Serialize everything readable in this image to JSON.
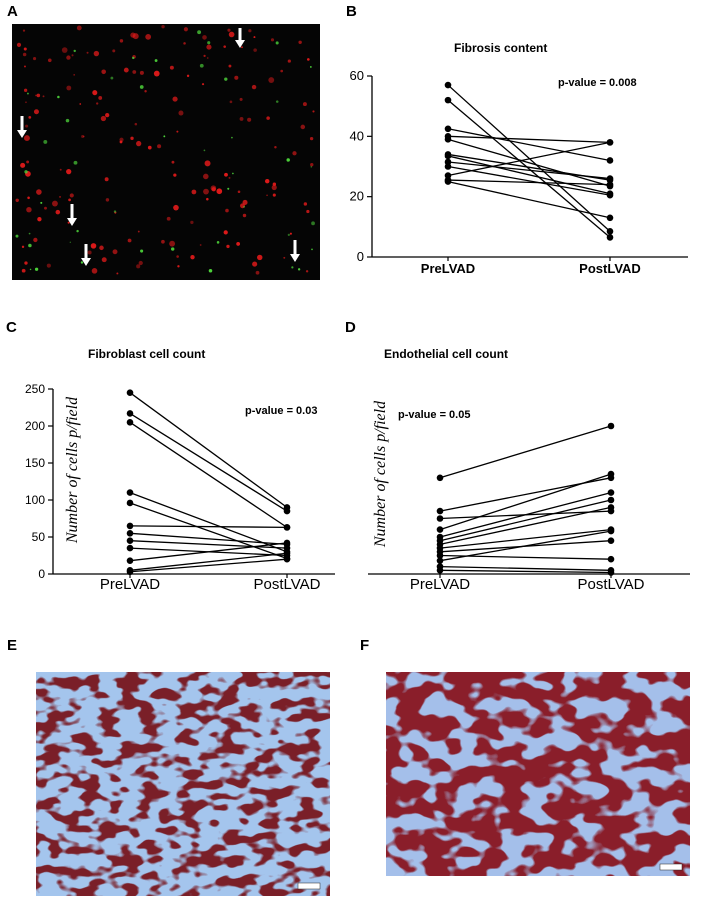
{
  "panels": {
    "A": "A",
    "B": "B",
    "C": "C",
    "D": "D",
    "E": "E",
    "F": "F"
  },
  "colors": {
    "fluorescence_bg": "#050505",
    "red_cells": "#e01a1a",
    "green_cells": "#4cd13a",
    "collagen_blue": "#5f8fd8",
    "myocyte_red": "#7a1f28"
  },
  "chart_data": [
    {
      "type": "line",
      "panel": "B",
      "title": "Fibrosis content",
      "annotation": "p-value = 0.008",
      "categories": [
        "PreLVAD",
        "PostLVAD"
      ],
      "ylabel": "",
      "ylim": [
        0,
        60
      ],
      "yticks": [
        0,
        20,
        40,
        60
      ],
      "pairs": [
        [
          57,
          8.5
        ],
        [
          52,
          6.5
        ],
        [
          42.5,
          32
        ],
        [
          40,
          38
        ],
        [
          39,
          23.5
        ],
        [
          34,
          25.5
        ],
        [
          33.5,
          21
        ],
        [
          31.5,
          26
        ],
        [
          30,
          20.5
        ],
        [
          27,
          38
        ],
        [
          25.5,
          24
        ],
        [
          25,
          13
        ]
      ]
    },
    {
      "type": "line",
      "panel": "C",
      "title": "Fibroblast cell count",
      "annotation": "p-value = 0.03",
      "categories": [
        "PreLVAD",
        "PostLVAD"
      ],
      "ylabel": "Number of cells p/field",
      "ylim": [
        0,
        250
      ],
      "yticks": [
        0,
        50,
        100,
        150,
        200,
        250
      ],
      "pairs": [
        [
          245,
          90
        ],
        [
          217,
          85
        ],
        [
          205,
          63
        ],
        [
          110,
          30
        ],
        [
          96,
          21
        ],
        [
          65,
          63
        ],
        [
          55,
          40
        ],
        [
          45,
          35
        ],
        [
          35,
          25
        ],
        [
          18,
          42
        ],
        [
          5,
          28
        ],
        [
          3,
          20
        ]
      ]
    },
    {
      "type": "line",
      "panel": "D",
      "title": "Endothelial cell count",
      "annotation": "p-value = 0.05",
      "categories": [
        "PreLVAD",
        "PostLVAD"
      ],
      "ylabel": "Number of cells p/field",
      "ylim": [
        0,
        200
      ],
      "pairs": [
        [
          130,
          200
        ],
        [
          85,
          130
        ],
        [
          75,
          85
        ],
        [
          60,
          135
        ],
        [
          50,
          110
        ],
        [
          45,
          100
        ],
        [
          40,
          90
        ],
        [
          35,
          60
        ],
        [
          30,
          45
        ],
        [
          25,
          20
        ],
        [
          18,
          58
        ],
        [
          10,
          5
        ],
        [
          5,
          2
        ]
      ]
    }
  ]
}
